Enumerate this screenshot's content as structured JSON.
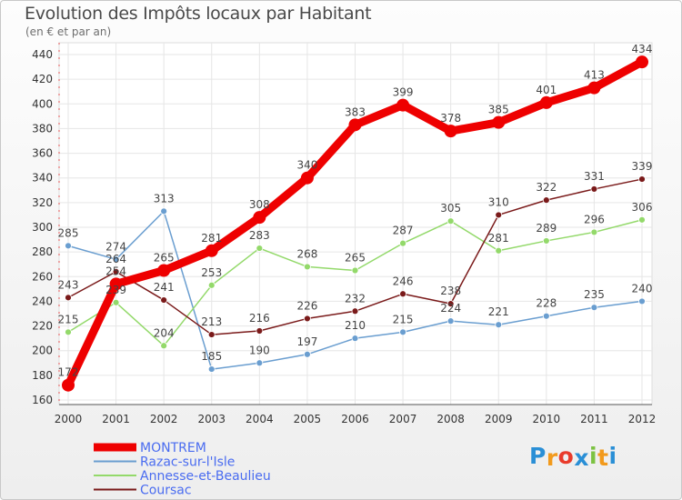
{
  "header": {
    "title": "Evolution des Impôts locaux par Habitant",
    "subtitle": "(en € et par an)"
  },
  "logo": {
    "text": "Proxiti",
    "letters": [
      "P",
      "r",
      "o",
      "x",
      "i",
      "t",
      "i"
    ],
    "colors": [
      "#2a8fd6",
      "#f29a1c",
      "#e93b2b",
      "#2a8fd6",
      "#7cc242",
      "#f29a1c",
      "#2a8fd6"
    ]
  },
  "chart_data": {
    "type": "line",
    "title": "Evolution des Impôts locaux par Habitant",
    "subtitle": "(en € et par an)",
    "xlabel": "",
    "ylabel": "",
    "x": [
      "2000",
      "2001",
      "2002",
      "2003",
      "2004",
      "2005",
      "2006",
      "2007",
      "2008",
      "2009",
      "2010",
      "2011",
      "2012"
    ],
    "ylim": [
      160,
      440
    ],
    "yticks": [
      160,
      180,
      200,
      220,
      240,
      260,
      280,
      300,
      320,
      340,
      360,
      380,
      400,
      420,
      440
    ],
    "grid": true,
    "legend_position": "bottom-left",
    "series": [
      {
        "name": "MONTREM",
        "color": "#ee0000",
        "legend_color": "#4a6cf0",
        "values": [
          172,
          254,
          265,
          281,
          308,
          340,
          383,
          399,
          378,
          385,
          401,
          413,
          434
        ],
        "labels": [
          "172",
          "254",
          "265",
          "281",
          "308",
          "340",
          "383",
          "399",
          "378",
          "385",
          "401",
          "413",
          "434"
        ],
        "thick": true
      },
      {
        "name": "Razac-sur-l'Isle",
        "color": "#6a9ed0",
        "legend_color": "#4a6cf0",
        "values": [
          285,
          274,
          313,
          185,
          190,
          197,
          210,
          215,
          224,
          221,
          228,
          235,
          240
        ],
        "labels": [
          "285",
          "274",
          "313",
          "185",
          "190",
          "197",
          "210",
          "215",
          "224",
          "221",
          "228",
          "235",
          "240"
        ],
        "thick": false
      },
      {
        "name": "Annesse-et-Beaulieu",
        "color": "#93d96a",
        "legend_color": "#4a6cf0",
        "values": [
          215,
          239,
          204,
          253,
          283,
          268,
          265,
          287,
          305,
          281,
          289,
          296,
          306
        ],
        "labels": [
          "215",
          "239",
          "204",
          "253",
          "283",
          "268",
          "265",
          "287",
          "305",
          "281",
          "289",
          "296",
          "306"
        ],
        "thick": false
      },
      {
        "name": "Coursac",
        "color": "#7a1a1a",
        "legend_color": "#4a6cf0",
        "values": [
          243,
          264,
          241,
          213,
          216,
          226,
          232,
          246,
          238,
          310,
          322,
          331,
          339
        ],
        "labels": [
          "243",
          "264",
          "241",
          "213",
          "216",
          "226",
          "232",
          "246",
          "238",
          "310",
          "322",
          "331",
          "339"
        ],
        "thick": false
      }
    ]
  }
}
